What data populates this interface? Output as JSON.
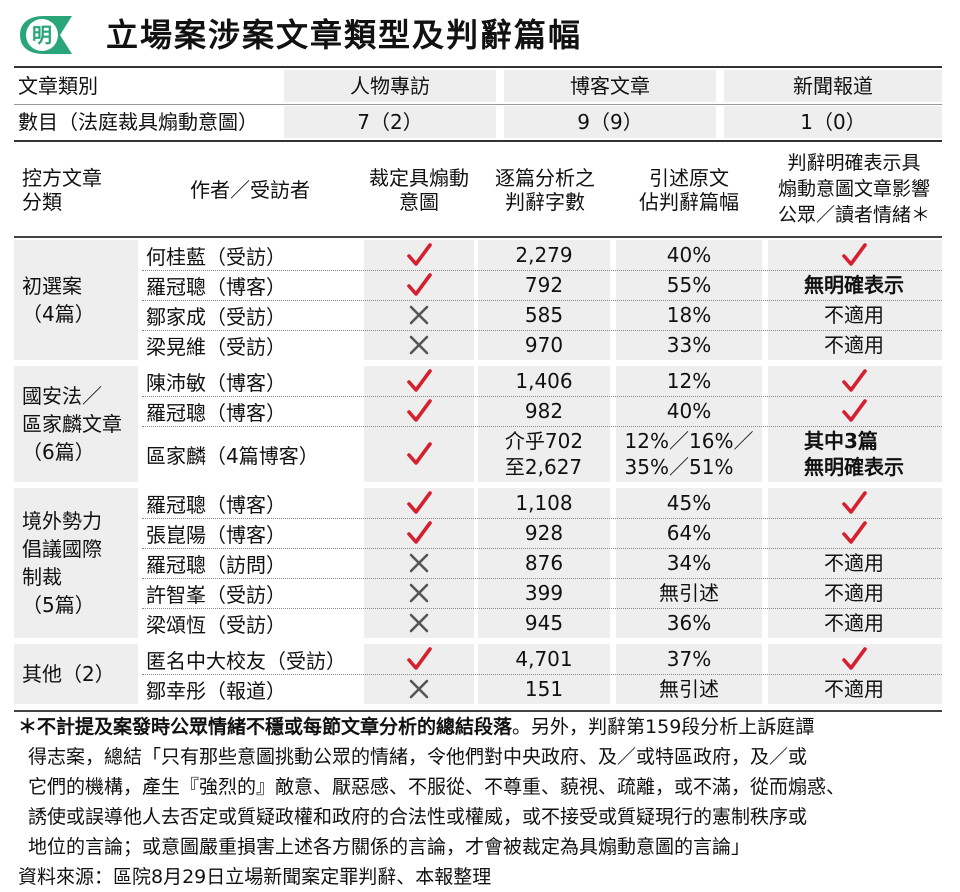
{
  "header": {
    "title": "立場案涉案文章類型及判辭篇幅",
    "logo_char": "明"
  },
  "summary": {
    "row1_label": "文章類別",
    "row2_label": "數目（法庭裁具煽動意圖）",
    "categories": [
      "人物專訪",
      "博客文章",
      "新聞報道"
    ],
    "counts": [
      "7（2）",
      "9（9）",
      "1（0）"
    ]
  },
  "columns": {
    "c1": "控方文章\n分類",
    "c2": "作者／受訪者",
    "c3": "裁定具煽動\n意圖",
    "c4": "逐篇分析之\n判辭字數",
    "c5": "引述原文\n佔判辭篇幅",
    "c6": "判辭明確表示具\n煽動意圖文章影響\n公眾／讀者情緒＊"
  },
  "groups": [
    {
      "label": "初選案\n（4篇）"
    },
    {
      "label": "國安法／\n區家麟文章\n（6篇）"
    },
    {
      "label": "境外勢力\n倡議國際\n制裁\n（5篇）"
    },
    {
      "label": "其他（2）"
    }
  ],
  "rows": [
    {
      "name": "何桂藍（受訪）",
      "ruled": true,
      "words": "2,279",
      "quote": "40%",
      "result": "check"
    },
    {
      "name": "羅冠聰（博客）",
      "ruled": true,
      "words": "792",
      "quote": "55%",
      "result": "無明確表示"
    },
    {
      "name": "鄒家成（受訪）",
      "ruled": false,
      "words": "585",
      "quote": "18%",
      "result": "不適用"
    },
    {
      "name": "梁晃維（受訪）",
      "ruled": false,
      "words": "970",
      "quote": "33%",
      "result": "不適用"
    },
    {
      "name": "陳沛敏（博客）",
      "ruled": true,
      "words": "1,406",
      "quote": "12%",
      "result": "check"
    },
    {
      "name": "羅冠聰（博客）",
      "ruled": true,
      "words": "982",
      "quote": "40%",
      "result": "check"
    },
    {
      "name": "區家麟（4篇博客）",
      "ruled": true,
      "words": "介乎702\n至2,627",
      "quote": "12%／16%／\n35%／51%",
      "result": "其中3篇\n無明確表示"
    },
    {
      "name": "羅冠聰（博客）",
      "ruled": true,
      "words": "1,108",
      "quote": "45%",
      "result": "check"
    },
    {
      "name": "張崑陽（博客）",
      "ruled": true,
      "words": "928",
      "quote": "64%",
      "result": "check"
    },
    {
      "name": "羅冠聰（訪問）",
      "ruled": false,
      "words": "876",
      "quote": "34%",
      "result": "不適用"
    },
    {
      "name": "許智峯（受訪）",
      "ruled": false,
      "words": "399",
      "quote": "無引述",
      "result": "不適用"
    },
    {
      "name": "梁頌恆（受訪）",
      "ruled": false,
      "words": "945",
      "quote": "36%",
      "result": "不適用"
    },
    {
      "name": "匿名中大校友（受訪）",
      "ruled": true,
      "words": "4,701",
      "quote": "37%",
      "result": "check"
    },
    {
      "name": "鄒幸彤（報道）",
      "ruled": false,
      "words": "151",
      "quote": "無引述",
      "result": "不適用"
    }
  ],
  "footnote": {
    "star": "＊",
    "bold": "不計提及案發時公眾情緒不穩或每節文章分析的總結段落",
    "rest": "。另外，判辭第159段分析上訴庭譚",
    "lines": [
      "得志案，總結「只有那些意圖挑動公眾的情緒，令他們對中央政府、及／或特區政府，及／或",
      "它們的機構，產生『強烈的』敵意、厭惡感、不服從、不尊重、藐視、疏離，或不滿，從而煽惑、",
      "誘使或誤導他人去否定或質疑政權和政府的合法性或權威，或不接受或質疑現行的憲制秩序或",
      "地位的言論；或意圖嚴重損害上述各方關係的言論，才會被裁定為具煽動意圖的言論」"
    ],
    "source": "資料來源：區院8月29日立場新聞案定罪判辭、本報整理"
  },
  "colors": {
    "accent_green": "#2aa57a",
    "check_red": "#d6202f",
    "cross_gray": "#555555",
    "band_gray": "#eeeeee"
  }
}
